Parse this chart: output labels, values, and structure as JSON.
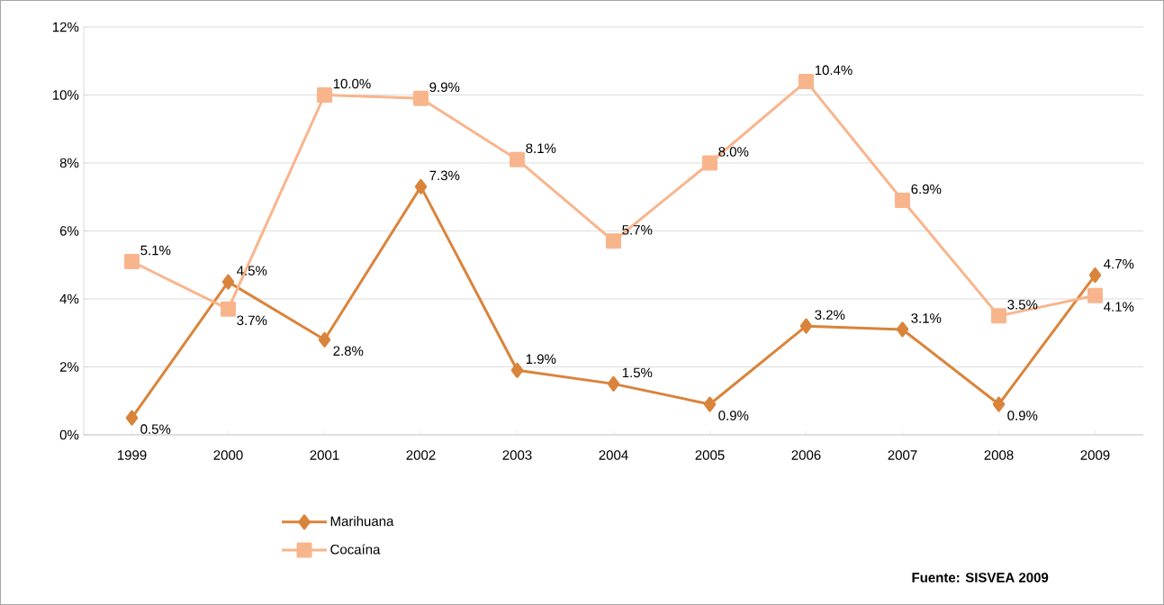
{
  "chart_data": {
    "type": "line",
    "categories": [
      "1999",
      "2000",
      "2001",
      "2002",
      "2003",
      "2004",
      "2005",
      "2006",
      "2007",
      "2008",
      "2009"
    ],
    "series": [
      {
        "name": "Marihuana",
        "color": "#d9843b",
        "marker": "diamond",
        "values": [
          0.5,
          4.5,
          2.8,
          7.3,
          1.9,
          1.5,
          0.9,
          3.2,
          3.1,
          0.9,
          4.7
        ],
        "value_labels": [
          "0.5%",
          "4.5%",
          "2.8%",
          "7.3%",
          "1.9%",
          "1.5%",
          "0.9%",
          "3.2%",
          "3.1%",
          "0.9%",
          "4.7%"
        ]
      },
      {
        "name": "Cocaína",
        "color": "#f8b58c",
        "marker": "square",
        "values": [
          5.1,
          3.7,
          10.0,
          9.9,
          8.1,
          5.7,
          8.0,
          10.4,
          6.9,
          3.5,
          4.1
        ],
        "value_labels": [
          "5.1%",
          "3.7%",
          "10.0%",
          "9.9%",
          "8.1%",
          "5.7%",
          "8.0%",
          "10.4%",
          "6.9%",
          "3.5%",
          "4.1%"
        ]
      }
    ],
    "ylim": [
      0,
      12
    ],
    "yticks": [
      {
        "value": 0,
        "label": "0%"
      },
      {
        "value": 2,
        "label": "2%"
      },
      {
        "value": 4,
        "label": "4%"
      },
      {
        "value": 6,
        "label": "6%"
      },
      {
        "value": 8,
        "label": "8%"
      },
      {
        "value": 10,
        "label": "10%"
      },
      {
        "value": 12,
        "label": "12%"
      }
    ],
    "grid": "y",
    "legend": "bottom left",
    "line_style": "solid",
    "annotations": [
      "Fuente: SISVEA 2009"
    ]
  }
}
